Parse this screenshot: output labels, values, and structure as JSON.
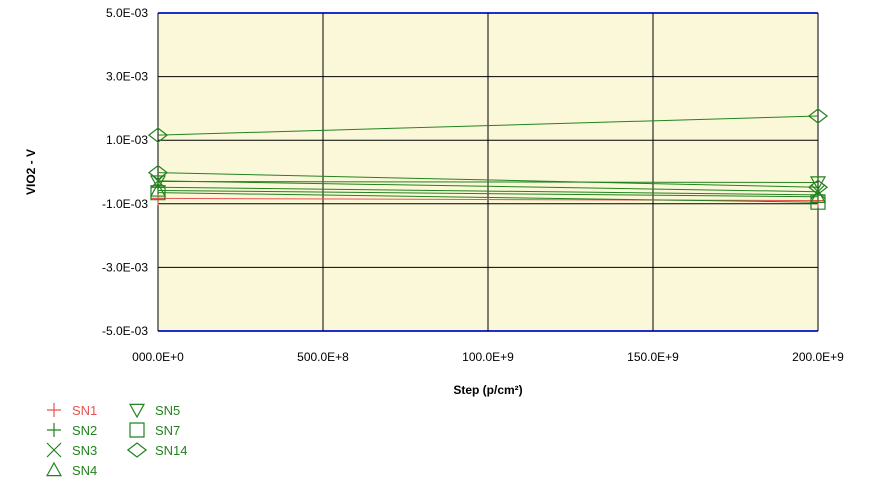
{
  "chart_data": {
    "type": "line",
    "xlabel": "Step (p/cm²)",
    "ylabel": "VIO2 - V",
    "xlim": [
      0,
      200000000000
    ],
    "ylim": [
      -0.005,
      0.005
    ],
    "x_ticks": [
      0,
      50000000000,
      100000000000,
      150000000000,
      200000000000
    ],
    "x_tick_labels": [
      "000.0E+0",
      "500.0E+8",
      "100.0E+9",
      "150.0E+9",
      "200.0E+9"
    ],
    "y_ticks": [
      0.005,
      0.003,
      0.001,
      -0.001,
      -0.003,
      -0.005
    ],
    "y_tick_labels": [
      "5.0E-03",
      "3.0E-03",
      "1.0E-03",
      "-1.0E-03",
      "-3.0E-03",
      "-5.0E-03"
    ],
    "grid": true,
    "plot_background": "#fbf8d9",
    "legend_position": "bottom-left",
    "series": [
      {
        "name": "SN1",
        "marker": "plus",
        "color": "#e8534f",
        "x": [
          0,
          200000000000
        ],
        "y": [
          -0.00083,
          -0.0009
        ]
      },
      {
        "name": "SN2",
        "marker": "plus",
        "color": "#23821f",
        "x": [
          0,
          200000000000
        ],
        "y": [
          -0.00048,
          -0.00072
        ]
      },
      {
        "name": "SN3",
        "marker": "x",
        "color": "#23821f",
        "x": [
          0,
          200000000000
        ],
        "y": [
          -0.00028,
          -0.00062
        ]
      },
      {
        "name": "SN4",
        "marker": "triangle-up",
        "color": "#23821f",
        "x": [
          0,
          200000000000
        ],
        "y": [
          -0.00058,
          -0.00078
        ]
      },
      {
        "name": "SN5",
        "marker": "triangle-down",
        "color": "#23821f",
        "x": [
          0,
          200000000000
        ],
        "y": [
          -0.0003,
          -0.00033
        ]
      },
      {
        "name": "SN7",
        "marker": "square",
        "color": "#23821f",
        "x": [
          0,
          200000000000
        ],
        "y": [
          -0.00065,
          -0.00095
        ]
      },
      {
        "name": "SN14",
        "marker": "diamond",
        "color": "#23821f",
        "x": [
          0,
          200000000000
        ],
        "y": [
          0.00116,
          0.00176
        ]
      },
      {
        "name": "",
        "marker": "diamond",
        "color": "#23821f",
        "x": [
          0,
          200000000000
        ],
        "y": [
          -2e-05,
          -0.00048
        ],
        "legend": false
      }
    ]
  }
}
